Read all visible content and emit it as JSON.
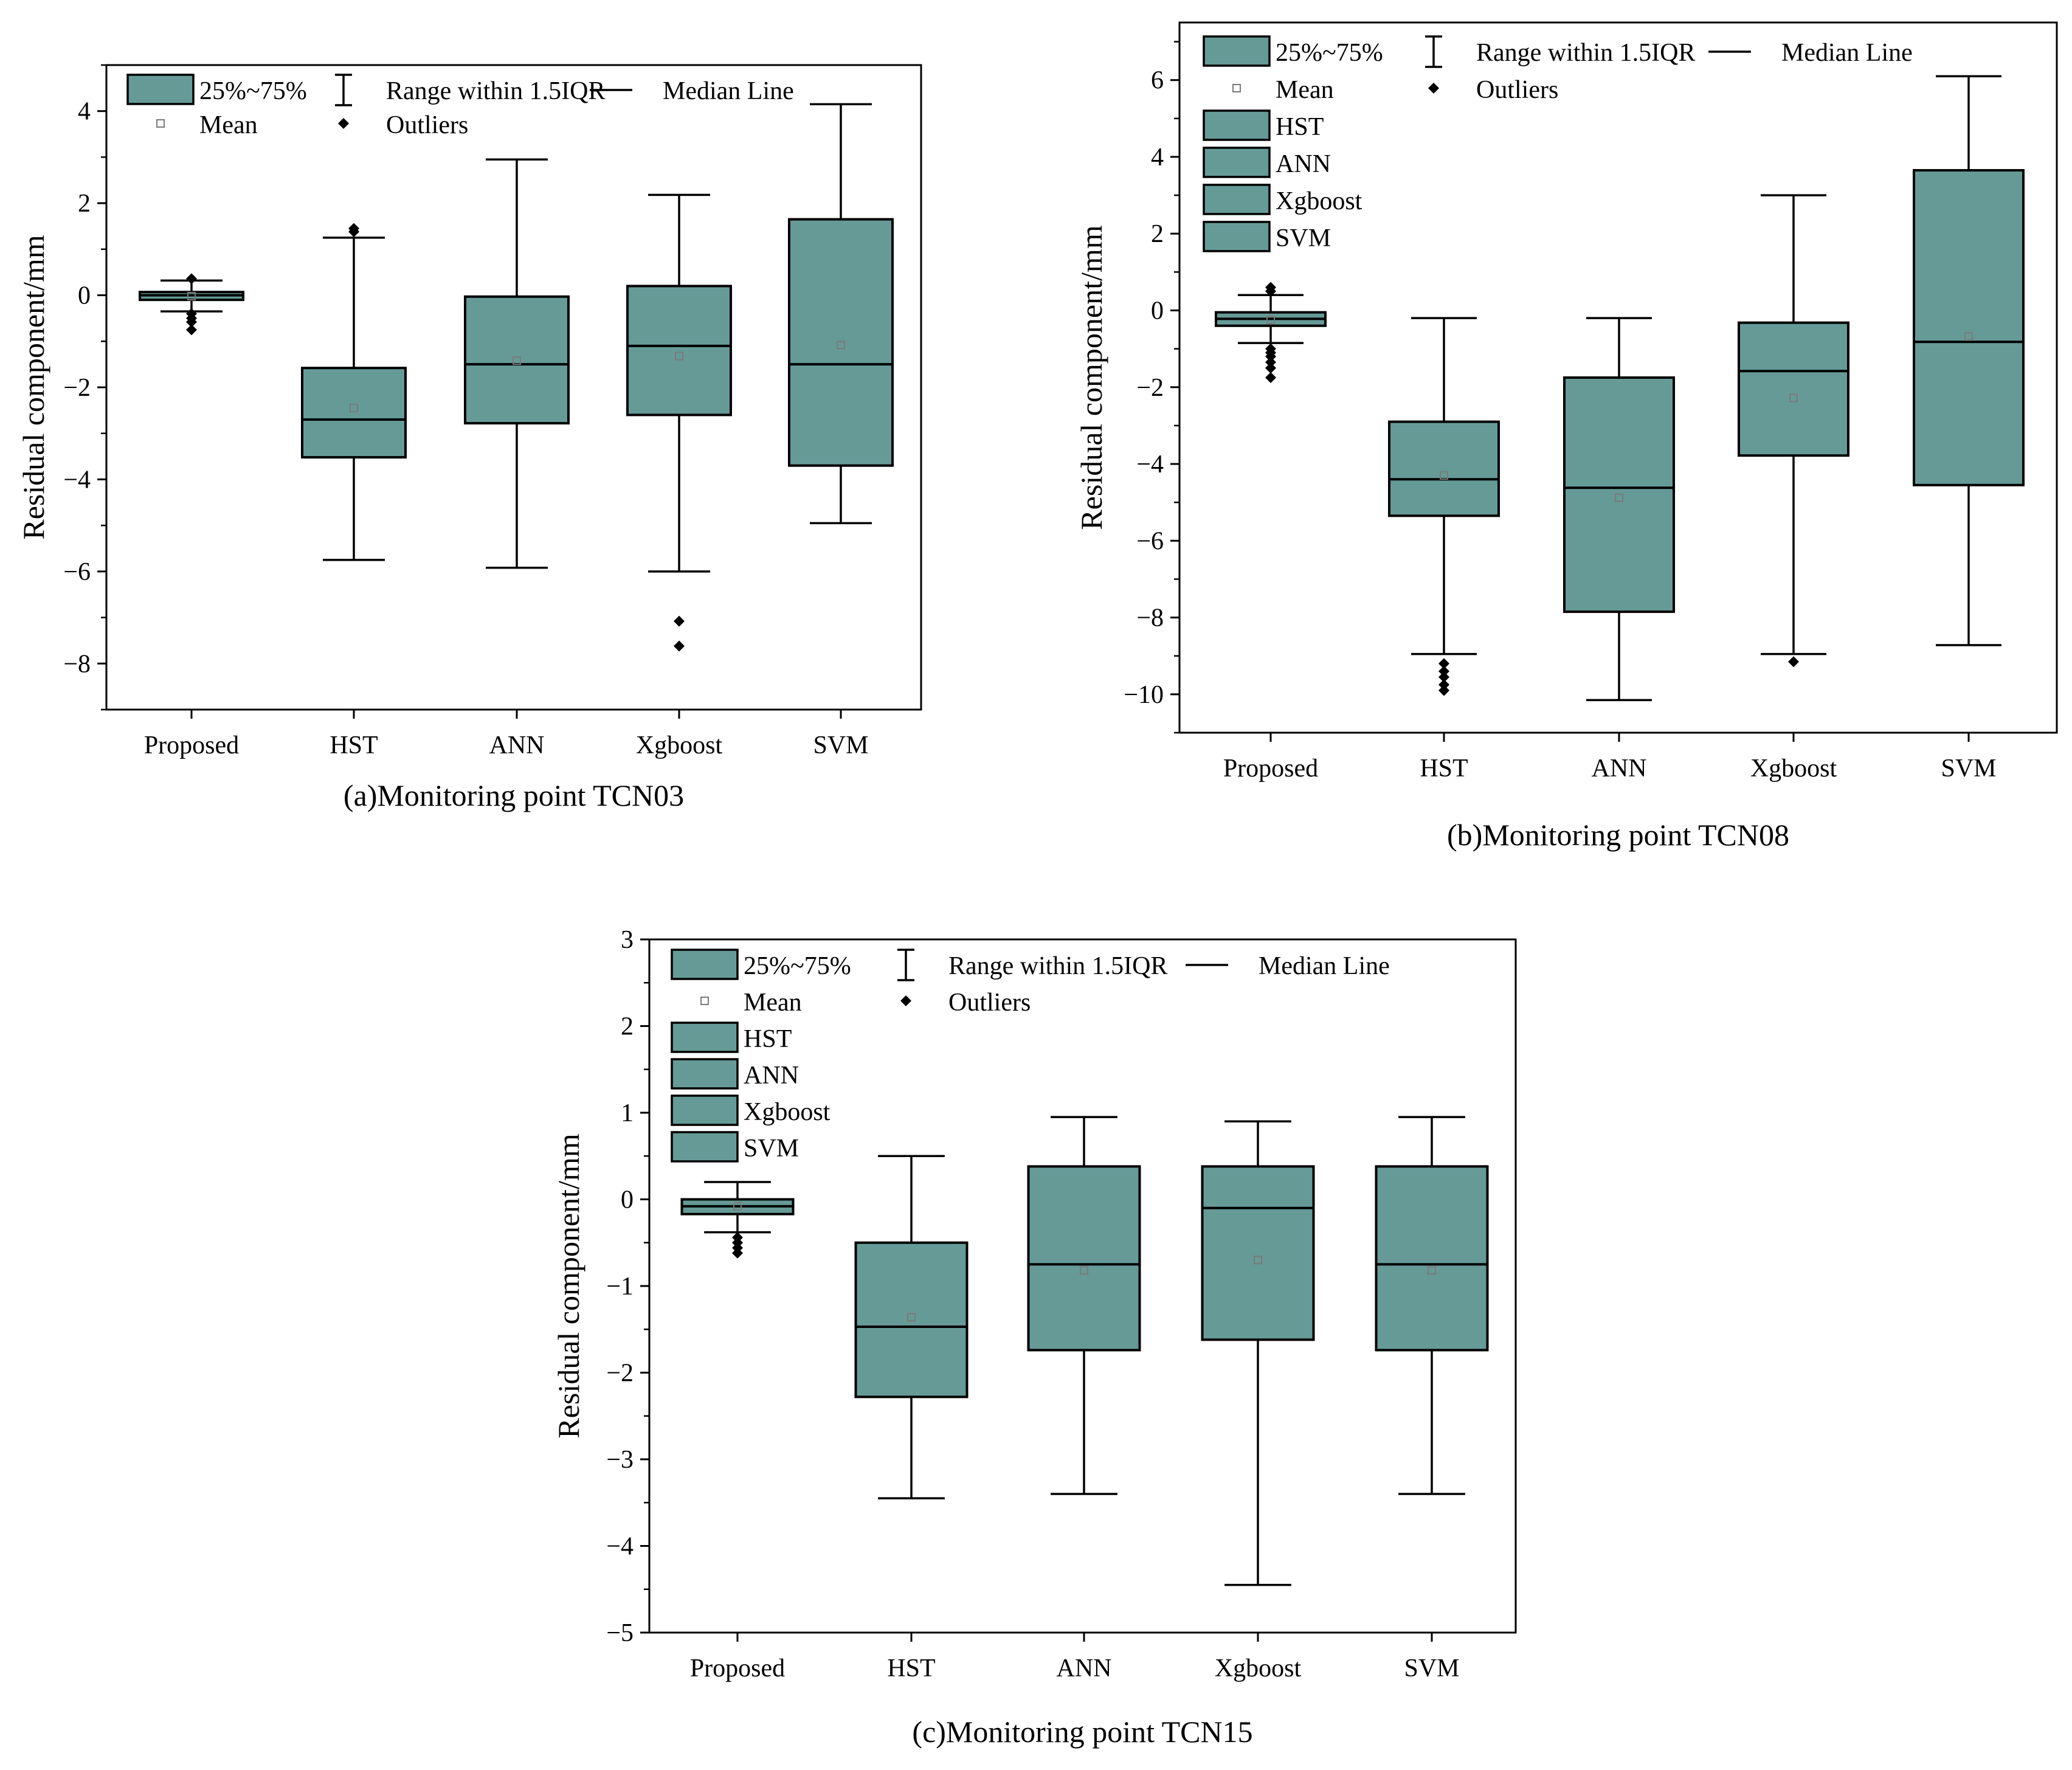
{
  "chart_data": [
    {
      "type": "box",
      "caption": "(a)Monitoring point TCN03",
      "ylabel": "Residual component/mm",
      "ylim": [
        -9,
        5
      ],
      "yticks": [
        -8,
        -6,
        -4,
        -2,
        0,
        2,
        4
      ],
      "categories": [
        "Proposed",
        "HST",
        "ANN",
        "Xgboost",
        "SVM"
      ],
      "legend": {
        "box_label": "25%~75%",
        "range_label": "Range within 1.5IQR",
        "median_label": "Median Line",
        "mean_label": "Mean",
        "outlier_label": "Outliers",
        "series_labels": []
      },
      "boxes": [
        {
          "min": -0.35,
          "q1": -0.1,
          "median": 0.0,
          "q3": 0.07,
          "max": 0.32,
          "mean": -0.02,
          "outliers": [
            0.36,
            -0.4,
            -0.5,
            -0.58,
            -0.75
          ]
        },
        {
          "min": -5.75,
          "q1": -3.52,
          "median": -2.7,
          "q3": -1.58,
          "max": 1.25,
          "mean": -2.45,
          "outliers": [
            1.38,
            1.45
          ]
        },
        {
          "min": -5.92,
          "q1": -2.78,
          "median": -1.5,
          "q3": -0.03,
          "max": 2.95,
          "mean": -1.42,
          "outliers": []
        },
        {
          "min": -6.0,
          "q1": -2.6,
          "median": -1.1,
          "q3": 0.2,
          "max": 2.18,
          "mean": -1.32,
          "outliers": [
            -7.08,
            -7.62
          ]
        },
        {
          "min": -4.95,
          "q1": -3.7,
          "median": -1.5,
          "q3": 1.65,
          "max": 4.15,
          "mean": -1.08,
          "outliers": []
        }
      ]
    },
    {
      "type": "box",
      "caption": "(b)Monitoring point TCN08",
      "ylabel": "Residual component/mm",
      "ylim": [
        -11,
        7.5
      ],
      "yticks": [
        -10,
        -8,
        -6,
        -4,
        -2,
        0,
        2,
        4,
        6
      ],
      "categories": [
        "Proposed",
        "HST",
        "ANN",
        "Xgboost",
        "SVM"
      ],
      "legend": {
        "box_label": "25%~75%",
        "range_label": "Range within 1.5IQR",
        "median_label": "Median Line",
        "mean_label": "Mean",
        "outlier_label": "Outliers",
        "series_labels": [
          "HST",
          "ANN",
          "Xgboost",
          "SVM"
        ]
      },
      "boxes": [
        {
          "min": -0.85,
          "q1": -0.4,
          "median": -0.22,
          "q3": -0.05,
          "max": 0.4,
          "mean": -0.25,
          "outliers": [
            0.5,
            0.6,
            -1.0,
            -1.1,
            -1.2,
            -1.35,
            -1.5,
            -1.75
          ]
        },
        {
          "min": -8.95,
          "q1": -5.35,
          "median": -4.4,
          "q3": -2.9,
          "max": -0.2,
          "mean": -4.3,
          "outliers": [
            -9.2,
            -9.4,
            -9.55,
            -9.75,
            -9.9
          ]
        },
        {
          "min": -10.15,
          "q1": -7.85,
          "median": -4.62,
          "q3": -1.75,
          "max": -0.2,
          "mean": -4.88,
          "outliers": []
        },
        {
          "min": -8.95,
          "q1": -3.78,
          "median": -1.58,
          "q3": -0.32,
          "max": 3.0,
          "mean": -2.28,
          "outliers": [
            -9.15
          ]
        },
        {
          "min": -8.72,
          "q1": -4.55,
          "median": -0.82,
          "q3": 3.65,
          "max": 6.1,
          "mean": -0.68,
          "outliers": []
        }
      ]
    },
    {
      "type": "box",
      "caption": "(c)Monitoring point TCN15",
      "ylabel": "Residual component/mm",
      "ylim": [
        -5,
        3
      ],
      "yticks": [
        -5,
        -4,
        -3,
        -2,
        -1,
        0,
        1,
        2,
        3
      ],
      "categories": [
        "Proposed",
        "HST",
        "ANN",
        "Xgboost",
        "SVM"
      ],
      "legend": {
        "box_label": "25%~75%",
        "range_label": "Range within 1.5IQR",
        "median_label": "Median Line",
        "mean_label": "Mean",
        "outlier_label": "Outliers",
        "series_labels": [
          "HST",
          "ANN",
          "Xgboost",
          "SVM"
        ]
      },
      "boxes": [
        {
          "min": -0.38,
          "q1": -0.17,
          "median": -0.08,
          "q3": 0.0,
          "max": 0.2,
          "mean": -0.08,
          "outliers": [
            -0.44,
            -0.5,
            -0.56,
            -0.62
          ]
        },
        {
          "min": -3.45,
          "q1": -2.28,
          "median": -1.47,
          "q3": -0.5,
          "max": 0.5,
          "mean": -1.36,
          "outliers": []
        },
        {
          "min": -3.4,
          "q1": -1.74,
          "median": -0.75,
          "q3": 0.38,
          "max": 0.95,
          "mean": -0.82,
          "outliers": []
        },
        {
          "min": -4.45,
          "q1": -1.62,
          "median": -0.1,
          "q3": 0.38,
          "max": 0.9,
          "mean": -0.7,
          "outliers": []
        },
        {
          "min": -3.4,
          "q1": -1.74,
          "median": -0.75,
          "q3": 0.38,
          "max": 0.95,
          "mean": -0.82,
          "outliers": []
        }
      ]
    }
  ],
  "colors": {
    "box_fill": "#659a97",
    "stroke": "#000000",
    "mean_marker": "#7a7a7a",
    "background": "#ffffff"
  }
}
